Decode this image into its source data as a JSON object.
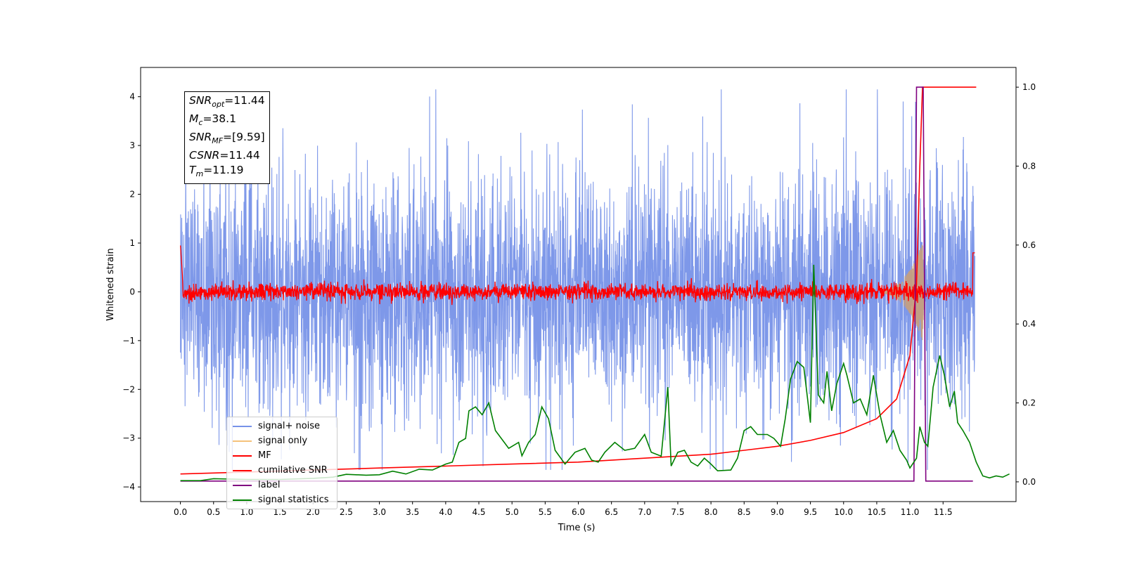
{
  "chart_data": {
    "type": "line",
    "xlabel": "Time (s)",
    "ylabel": "Whitened strain",
    "xlim": [
      -0.6,
      12.6
    ],
    "ylim_left": [
      -4.3,
      4.6
    ],
    "ylim_right": [
      -0.05,
      1.05
    ],
    "x_ticks": [
      "0.0",
      "0.5",
      "1.0",
      "1.5",
      "2.0",
      "2.5",
      "3.0",
      "3.5",
      "4.0",
      "4.5",
      "5.0",
      "5.5",
      "6.0",
      "6.5",
      "7.0",
      "7.5",
      "8.0",
      "8.5",
      "9.0",
      "9.5",
      "10.0",
      "10.5",
      "11.0",
      "11.5"
    ],
    "y_ticks_left": [
      "4",
      "3",
      "2",
      "1",
      "0",
      "−1",
      "−2",
      "−3",
      "−4"
    ],
    "y_ticks_right": [
      "1.0",
      "0.8",
      "0.6",
      "0.4",
      "0.2",
      "0.0"
    ],
    "series": [
      {
        "name": "signal+ noise",
        "axis": "left",
        "color": "#7792e8",
        "description_range": [
          -3.6,
          4.2
        ]
      },
      {
        "name": "signal only",
        "axis": "left",
        "color": "#f5c27a"
      },
      {
        "name": "MF",
        "axis": "left",
        "color": "#ff0000"
      },
      {
        "name": "cumilative SNR",
        "axis": "right",
        "color": "#ff0000",
        "points": [
          [
            0.0,
            0.02
          ],
          [
            1.0,
            0.025
          ],
          [
            2.0,
            0.03
          ],
          [
            3.0,
            0.035
          ],
          [
            4.0,
            0.04
          ],
          [
            5.0,
            0.045
          ],
          [
            6.0,
            0.05
          ],
          [
            7.0,
            0.06
          ],
          [
            8.0,
            0.07
          ],
          [
            8.5,
            0.08
          ],
          [
            9.0,
            0.09
          ],
          [
            9.5,
            0.105
          ],
          [
            10.0,
            0.125
          ],
          [
            10.5,
            0.16
          ],
          [
            10.8,
            0.21
          ],
          [
            11.0,
            0.32
          ],
          [
            11.1,
            0.5
          ],
          [
            11.15,
            0.8
          ],
          [
            11.19,
            1.0
          ],
          [
            12.0,
            1.0
          ]
        ]
      },
      {
        "name": "label",
        "axis": "right",
        "color": "#800080",
        "points": [
          [
            0.0,
            0.002
          ],
          [
            11.06,
            0.002
          ],
          [
            11.1,
            1.0
          ],
          [
            11.2,
            1.0
          ],
          [
            11.24,
            0.002
          ],
          [
            11.95,
            0.002
          ]
        ]
      },
      {
        "name": "signal statistics",
        "axis": "right",
        "color": "#008000",
        "points": [
          [
            0.0,
            0.003
          ],
          [
            0.3,
            0.003
          ],
          [
            0.5,
            0.008
          ],
          [
            1.0,
            0.006
          ],
          [
            1.5,
            0.006
          ],
          [
            2.0,
            0.009
          ],
          [
            2.3,
            0.012
          ],
          [
            2.5,
            0.019
          ],
          [
            2.8,
            0.017
          ],
          [
            3.0,
            0.018
          ],
          [
            3.2,
            0.027
          ],
          [
            3.4,
            0.02
          ],
          [
            3.6,
            0.032
          ],
          [
            3.8,
            0.03
          ],
          [
            4.0,
            0.045
          ],
          [
            4.1,
            0.05
          ],
          [
            4.2,
            0.1
          ],
          [
            4.3,
            0.11
          ],
          [
            4.35,
            0.18
          ],
          [
            4.45,
            0.19
          ],
          [
            4.55,
            0.17
          ],
          [
            4.65,
            0.2
          ],
          [
            4.75,
            0.13
          ],
          [
            4.95,
            0.085
          ],
          [
            5.1,
            0.1
          ],
          [
            5.15,
            0.066
          ],
          [
            5.25,
            0.1
          ],
          [
            5.35,
            0.12
          ],
          [
            5.45,
            0.19
          ],
          [
            5.55,
            0.16
          ],
          [
            5.65,
            0.08
          ],
          [
            5.8,
            0.045
          ],
          [
            5.95,
            0.075
          ],
          [
            6.1,
            0.085
          ],
          [
            6.2,
            0.055
          ],
          [
            6.3,
            0.05
          ],
          [
            6.4,
            0.075
          ],
          [
            6.55,
            0.1
          ],
          [
            6.7,
            0.08
          ],
          [
            6.85,
            0.085
          ],
          [
            7.0,
            0.12
          ],
          [
            7.1,
            0.075
          ],
          [
            7.25,
            0.065
          ],
          [
            7.35,
            0.24
          ],
          [
            7.4,
            0.04
          ],
          [
            7.5,
            0.075
          ],
          [
            7.6,
            0.08
          ],
          [
            7.7,
            0.05
          ],
          [
            7.8,
            0.04
          ],
          [
            7.9,
            0.06
          ],
          [
            8.0,
            0.045
          ],
          [
            8.1,
            0.028
          ],
          [
            8.3,
            0.03
          ],
          [
            8.4,
            0.06
          ],
          [
            8.5,
            0.13
          ],
          [
            8.6,
            0.14
          ],
          [
            8.7,
            0.12
          ],
          [
            8.85,
            0.12
          ],
          [
            8.95,
            0.11
          ],
          [
            9.05,
            0.09
          ],
          [
            9.12,
            0.16
          ],
          [
            9.2,
            0.26
          ],
          [
            9.3,
            0.305
          ],
          [
            9.4,
            0.29
          ],
          [
            9.5,
            0.15
          ],
          [
            9.55,
            0.55
          ],
          [
            9.62,
            0.22
          ],
          [
            9.7,
            0.2
          ],
          [
            9.75,
            0.28
          ],
          [
            9.82,
            0.18
          ],
          [
            9.9,
            0.25
          ],
          [
            10.0,
            0.3
          ],
          [
            10.05,
            0.27
          ],
          [
            10.15,
            0.2
          ],
          [
            10.25,
            0.21
          ],
          [
            10.35,
            0.17
          ],
          [
            10.45,
            0.27
          ],
          [
            10.55,
            0.17
          ],
          [
            10.65,
            0.1
          ],
          [
            10.75,
            0.13
          ],
          [
            10.85,
            0.08
          ],
          [
            10.95,
            0.055
          ],
          [
            11.0,
            0.035
          ],
          [
            11.1,
            0.06
          ],
          [
            11.15,
            0.14
          ],
          [
            11.22,
            0.1
          ],
          [
            11.27,
            0.09
          ],
          [
            11.35,
            0.24
          ],
          [
            11.45,
            0.32
          ],
          [
            11.52,
            0.27
          ],
          [
            11.6,
            0.19
          ],
          [
            11.67,
            0.23
          ],
          [
            11.72,
            0.15
          ],
          [
            11.8,
            0.13
          ],
          [
            11.9,
            0.1
          ],
          [
            12.0,
            0.05
          ],
          [
            12.1,
            0.015
          ],
          [
            12.2,
            0.01
          ],
          [
            12.3,
            0.015
          ],
          [
            12.4,
            0.012
          ],
          [
            12.5,
            0.02
          ]
        ]
      }
    ],
    "annotations": {
      "snr_opt": "11.44",
      "mc": "38.1",
      "snr_mf": "[9.59]",
      "csnr": "11.44",
      "tm": "11.19"
    },
    "legend_placement": "lower-left"
  },
  "info": {
    "l1_pre": "SNR",
    "l1_sub": "opt",
    "l1_val": "=11.44",
    "l2_pre": "M",
    "l2_sub": "c",
    "l2_val": "=38.1",
    "l3_pre": "SNR",
    "l3_sub": "MF",
    "l3_val": "=[9.59]",
    "l4_pre": "CSNR",
    "l4_val": "=11.44",
    "l5_pre": "T",
    "l5_sub": "m",
    "l5_val": "=11.19"
  },
  "legend": [
    {
      "label": "signal+ noise",
      "color": "#7792e8"
    },
    {
      "label": "signal only",
      "color": "#f5c27a"
    },
    {
      "label": "MF",
      "color": "#ff0000"
    },
    {
      "label": "cumilative SNR",
      "color": "#ff0000"
    },
    {
      "label": "label",
      "color": "#800080"
    },
    {
      "label": "signal statistics",
      "color": "#008000"
    }
  ]
}
